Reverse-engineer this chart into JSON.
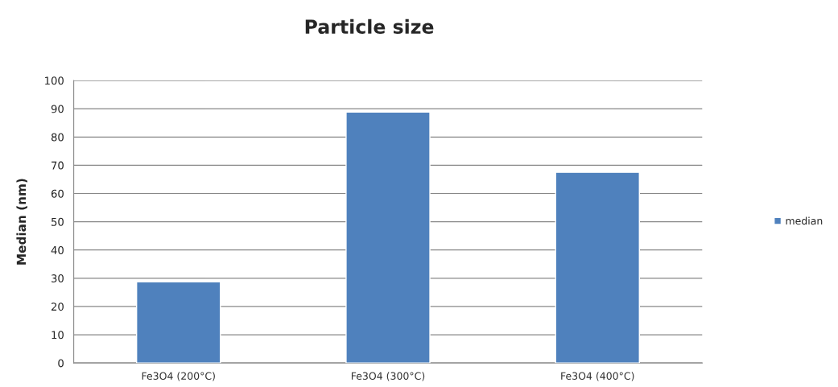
{
  "chart_data": {
    "type": "bar",
    "title": "Particle size",
    "ylabel": "Median (nm)",
    "categories": [
      "Fe3O4 (200°C)",
      "Fe3O4 (300°C)",
      "Fe3O4 (400°C)"
    ],
    "series": [
      {
        "name": "median",
        "color": "#4f81bd",
        "values": [
          28.7,
          88.8,
          67.5
        ]
      }
    ],
    "ylim": [
      0,
      100
    ],
    "yticks": [
      0,
      10,
      20,
      30,
      40,
      50,
      60,
      70,
      80,
      90,
      100
    ],
    "grid": "y",
    "legend": "right"
  }
}
